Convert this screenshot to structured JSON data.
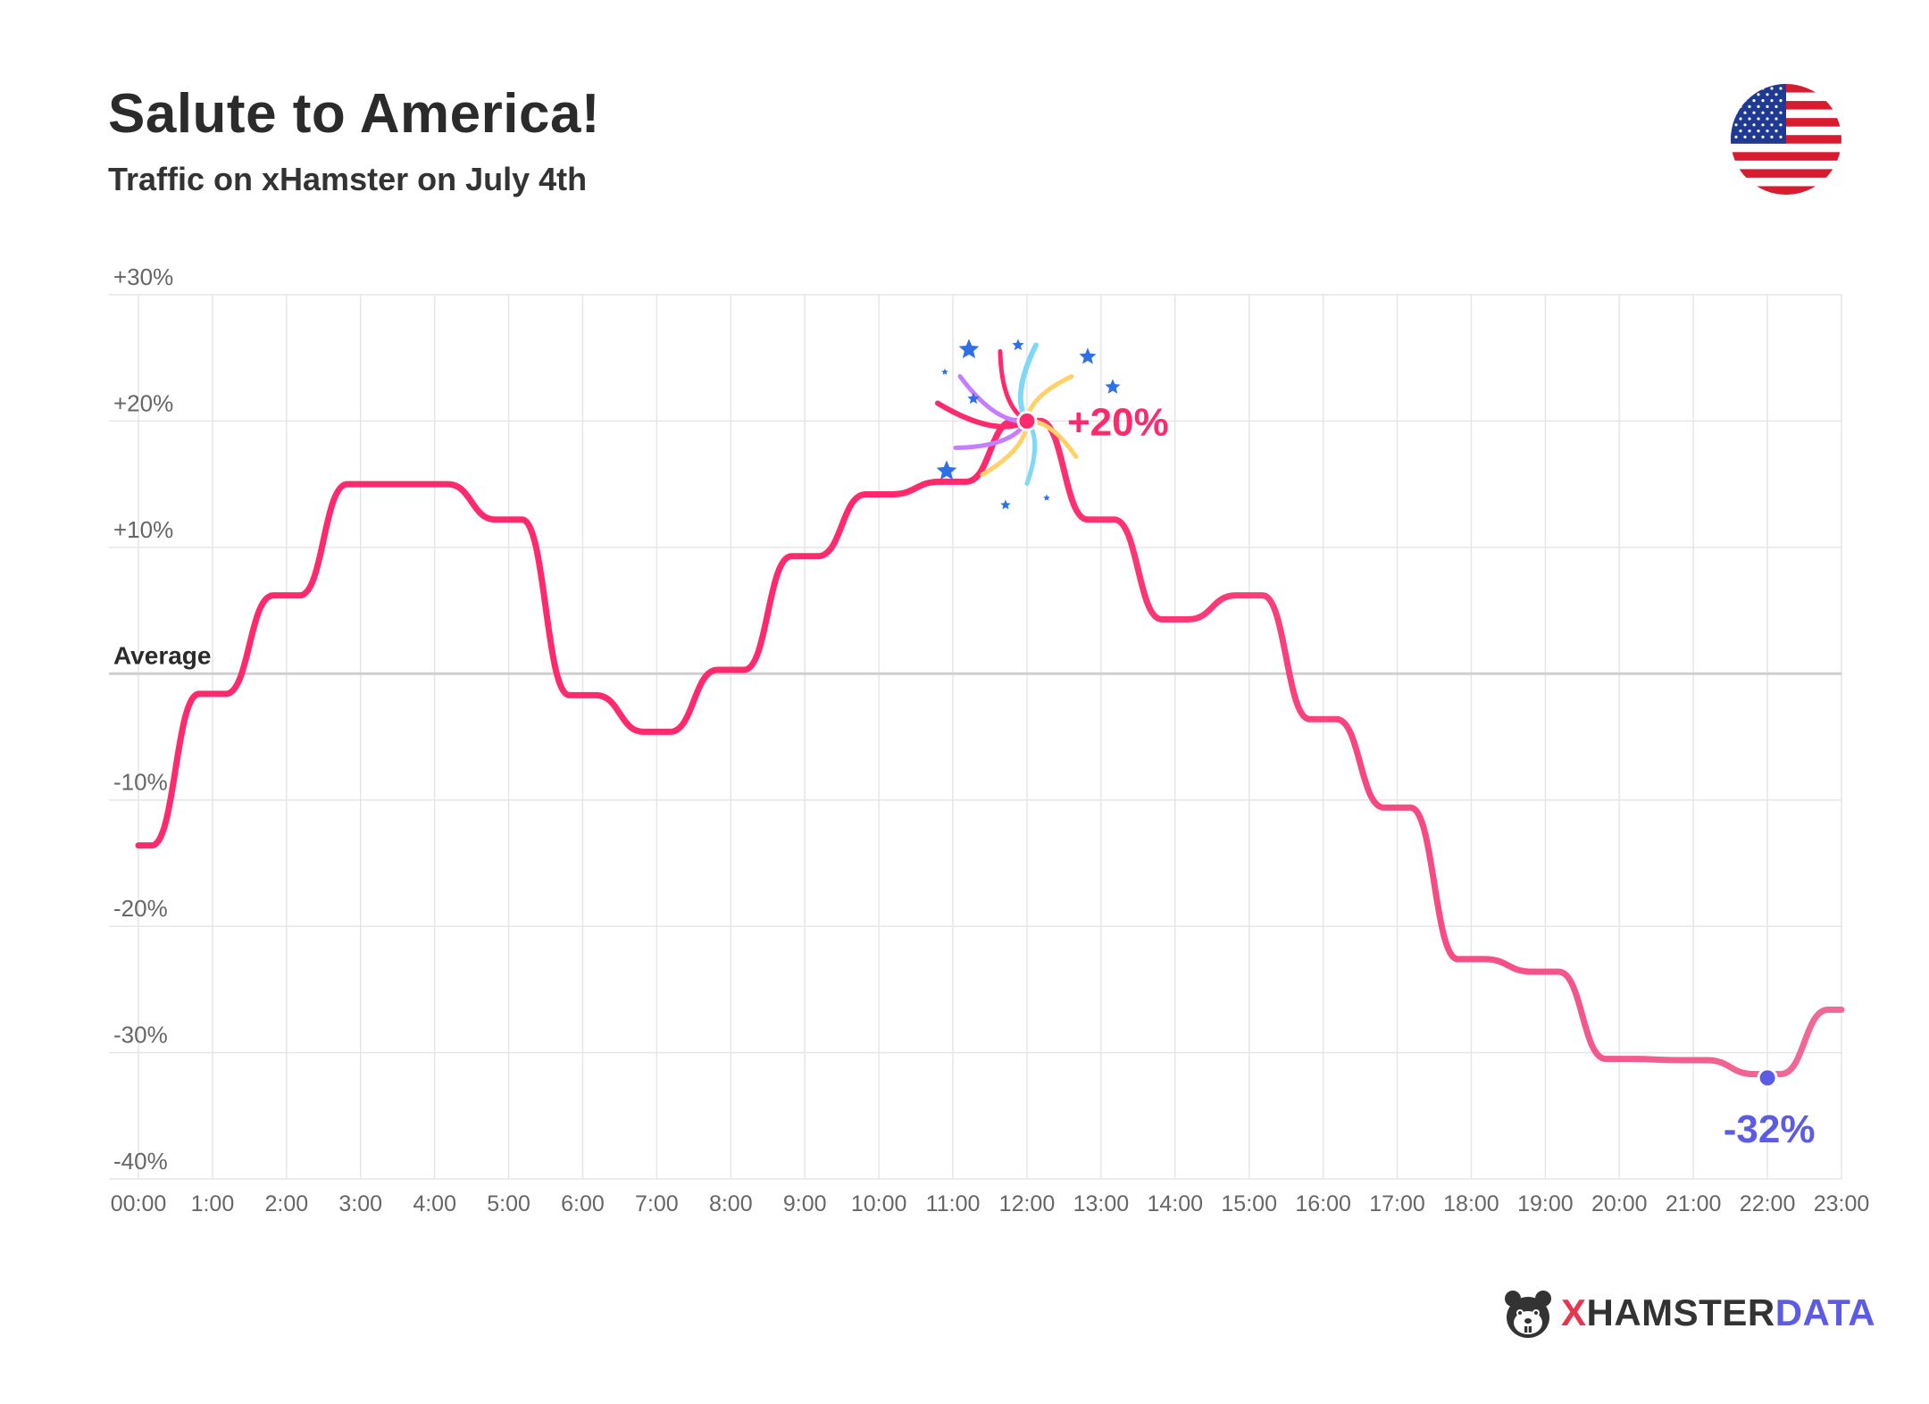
{
  "header": {
    "title": "Salute to America!",
    "subtitle": "Traffic on xHamster on July 4th"
  },
  "brand": {
    "x_letter": "X",
    "hamster_word": "HAMSTER",
    "data_word": "DATA"
  },
  "colors": {
    "line_start": "#ff2a6d",
    "line_end": "#f06a97",
    "max_marker": "#ff2a6d",
    "min_marker": "#5b5be6",
    "max_label": "#ff2a6d",
    "min_label": "#5b5be6",
    "grid": "#e6e6e6",
    "average_line": "#cfcfcf",
    "flag_red": "#d91b2f",
    "flag_blue": "#1f3a93"
  },
  "icons": {
    "flag": "us-flag-icon",
    "fireworks": "fireworks-icon",
    "logo": "hamster-logo-icon"
  },
  "chart_data": {
    "type": "line",
    "x_axis_type": "time-of-day",
    "categories": [
      "00:00",
      "1:00",
      "2:00",
      "3:00",
      "4:00",
      "5:00",
      "6:00",
      "7:00",
      "8:00",
      "9:00",
      "10:00",
      "11:00",
      "12:00",
      "13:00",
      "14:00",
      "15:00",
      "16:00",
      "17:00",
      "18:00",
      "19:00",
      "20:00",
      "21:00",
      "22:00",
      "23:00"
    ],
    "y_ticks": [
      {
        "value": 30,
        "label": "+30%"
      },
      {
        "value": 20,
        "label": "+20%"
      },
      {
        "value": 10,
        "label": "+10%"
      },
      {
        "value": 0,
        "label": "Average"
      },
      {
        "value": -10,
        "label": "-10%"
      },
      {
        "value": -20,
        "label": "-20%"
      },
      {
        "value": -30,
        "label": "-30%"
      },
      {
        "value": -40,
        "label": "-40%"
      }
    ],
    "ylim": [
      -40,
      30
    ],
    "grid": true,
    "series": [
      {
        "values": [
          -13.6,
          -1.6,
          6.2,
          15.0,
          15.0,
          12.2,
          -1.7,
          -4.6,
          0.3,
          9.3,
          14.2,
          15.2,
          20.0,
          12.2,
          4.3,
          6.2,
          -3.6,
          -10.6,
          -22.6,
          -23.6,
          -30.5,
          -30.6,
          -31.7,
          -26.6
        ]
      }
    ],
    "annotations": [
      {
        "category": "12:00",
        "value": 20,
        "label": "+20%",
        "kind": "max"
      },
      {
        "category": "22:00",
        "value": -32,
        "label": "-32%",
        "kind": "min"
      }
    ]
  }
}
